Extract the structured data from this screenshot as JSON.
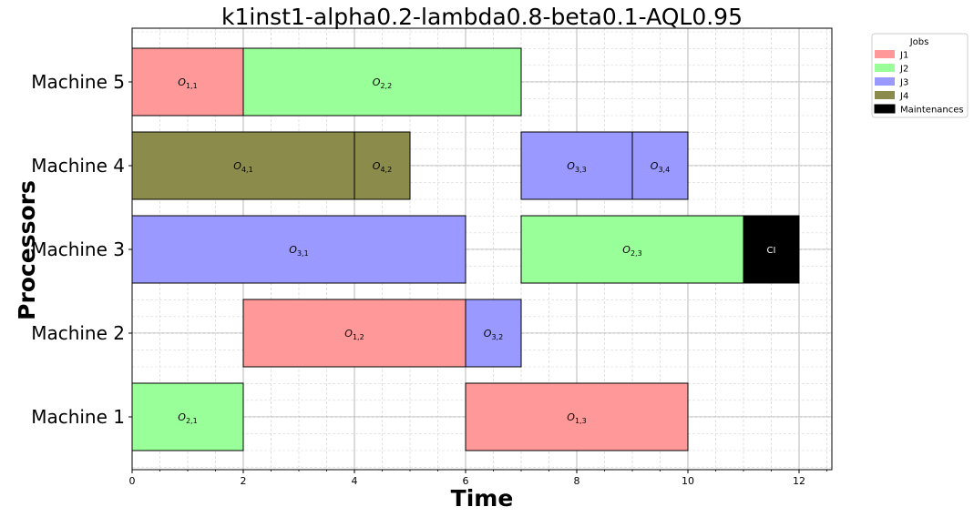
{
  "chart_data": {
    "type": "gantt",
    "title": "k1inst1-alpha0.2-lambda0.8-beta0.1-AQL0.95",
    "xlabel": "Time",
    "ylabel": "Processors",
    "xlim": [
      0,
      12.6
    ],
    "xticks": [
      0,
      2,
      4,
      6,
      8,
      10,
      12
    ],
    "grid": true,
    "legend": {
      "title": "Jobs",
      "placement": "outside-top-right",
      "entries": [
        {
          "label": "J1",
          "color": "#ff9999"
        },
        {
          "label": "J2",
          "color": "#99ff99"
        },
        {
          "label": "J3",
          "color": "#9999ff"
        },
        {
          "label": "J4",
          "color": "#8b8b4b"
        },
        {
          "label": "Maintenances",
          "color": "#000000"
        }
      ]
    },
    "machines": [
      "Machine 1",
      "Machine 2",
      "Machine 3",
      "Machine 4",
      "Machine 5"
    ],
    "tasks": [
      {
        "machine": 5,
        "start": 0,
        "end": 2,
        "job": "J1",
        "op": "O",
        "sub": "1,1"
      },
      {
        "machine": 5,
        "start": 2,
        "end": 7,
        "job": "J2",
        "op": "O",
        "sub": "2,2"
      },
      {
        "machine": 4,
        "start": 0,
        "end": 4,
        "job": "J4",
        "op": "O",
        "sub": "4,1"
      },
      {
        "machine": 4,
        "start": 4,
        "end": 5,
        "job": "J4",
        "op": "O",
        "sub": "4,2"
      },
      {
        "machine": 4,
        "start": 7,
        "end": 9,
        "job": "J3",
        "op": "O",
        "sub": "3,3"
      },
      {
        "machine": 4,
        "start": 9,
        "end": 10,
        "job": "J3",
        "op": "O",
        "sub": "3,4"
      },
      {
        "machine": 3,
        "start": 0,
        "end": 6,
        "job": "J3",
        "op": "O",
        "sub": "3,1"
      },
      {
        "machine": 3,
        "start": 7,
        "end": 11,
        "job": "J2",
        "op": "O",
        "sub": "2,3"
      },
      {
        "machine": 3,
        "start": 11,
        "end": 12,
        "job": "Maintenances",
        "op": "CI",
        "sub": ""
      },
      {
        "machine": 2,
        "start": 2,
        "end": 6,
        "job": "J1",
        "op": "O",
        "sub": "1,2"
      },
      {
        "machine": 2,
        "start": 6,
        "end": 7,
        "job": "J3",
        "op": "O",
        "sub": "3,2"
      },
      {
        "machine": 1,
        "start": 0,
        "end": 2,
        "job": "J2",
        "op": "O",
        "sub": "2,1"
      },
      {
        "machine": 1,
        "start": 6,
        "end": 10,
        "job": "J1",
        "op": "O",
        "sub": "1,3"
      }
    ]
  }
}
